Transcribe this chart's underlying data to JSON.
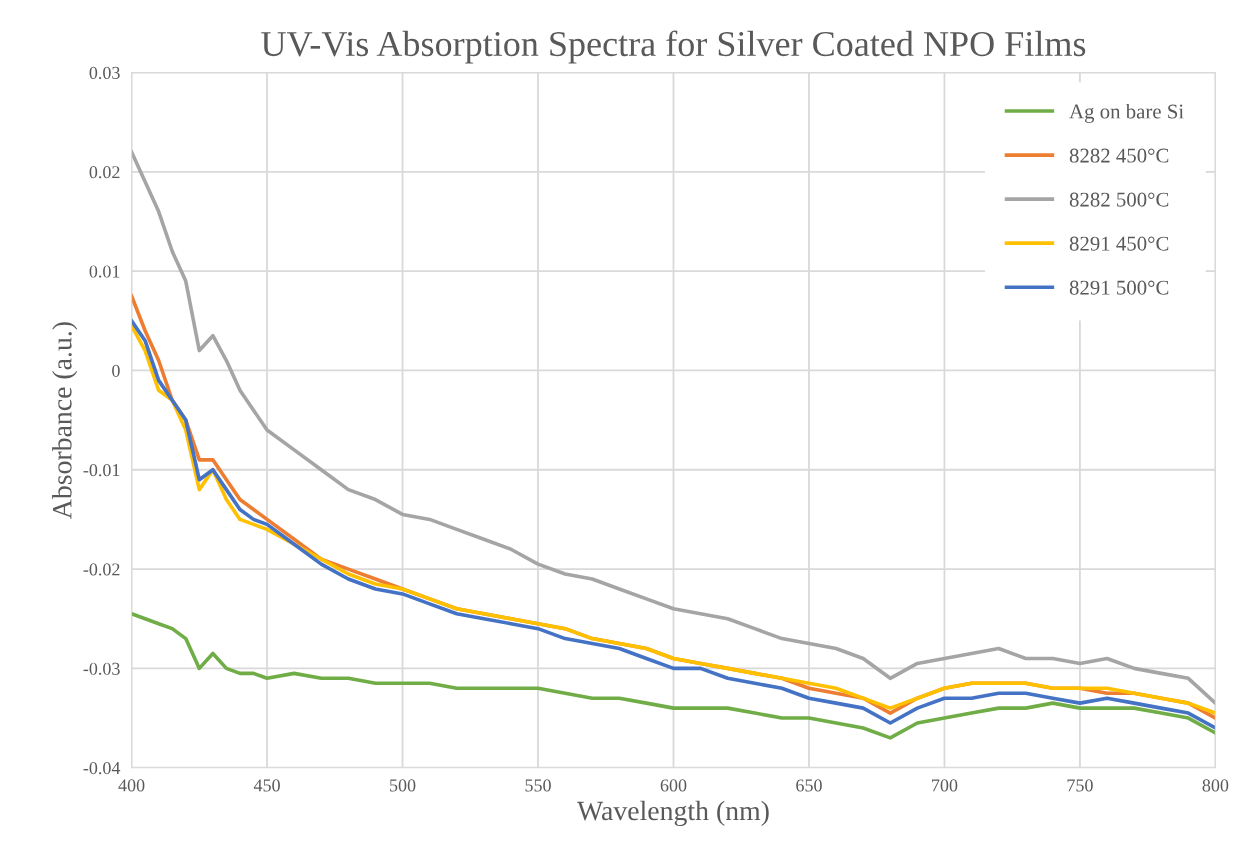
{
  "chart_data": {
    "type": "line",
    "title": "UV-Vis Absorption Spectra for Silver Coated NPO Films",
    "xlabel": "Wavelength (nm)",
    "ylabel": "Absorbance (a.u.)",
    "x": [
      400,
      405,
      410,
      415,
      420,
      425,
      430,
      435,
      440,
      445,
      450,
      460,
      470,
      480,
      490,
      500,
      510,
      520,
      530,
      540,
      550,
      560,
      570,
      580,
      590,
      600,
      610,
      620,
      630,
      640,
      650,
      660,
      670,
      680,
      690,
      700,
      710,
      720,
      730,
      740,
      750,
      760,
      770,
      780,
      790,
      800
    ],
    "series": [
      {
        "name": "Ag on bare Si",
        "color": "#70ad47",
        "values": [
          -0.0245,
          -0.025,
          -0.0255,
          -0.026,
          -0.027,
          -0.03,
          -0.0285,
          -0.03,
          -0.0305,
          -0.0305,
          -0.031,
          -0.0305,
          -0.031,
          -0.031,
          -0.0315,
          -0.0315,
          -0.0315,
          -0.032,
          -0.032,
          -0.032,
          -0.032,
          -0.0325,
          -0.033,
          -0.033,
          -0.0335,
          -0.034,
          -0.034,
          -0.034,
          -0.0345,
          -0.035,
          -0.035,
          -0.0355,
          -0.036,
          -0.037,
          -0.0355,
          -0.035,
          -0.0345,
          -0.034,
          -0.034,
          -0.0335,
          -0.034,
          -0.034,
          -0.034,
          -0.0345,
          -0.035,
          -0.0365
        ]
      },
      {
        "name": "8282 450°C",
        "color": "#ed7d31",
        "values": [
          0.0075,
          0.004,
          0.001,
          -0.003,
          -0.005,
          -0.009,
          -0.009,
          -0.011,
          -0.013,
          -0.014,
          -0.015,
          -0.017,
          -0.019,
          -0.02,
          -0.021,
          -0.022,
          -0.023,
          -0.024,
          -0.0245,
          -0.025,
          -0.0255,
          -0.026,
          -0.027,
          -0.0275,
          -0.028,
          -0.029,
          -0.0295,
          -0.03,
          -0.0305,
          -0.031,
          -0.032,
          -0.0325,
          -0.033,
          -0.0345,
          -0.033,
          -0.032,
          -0.0315,
          -0.0315,
          -0.0315,
          -0.032,
          -0.032,
          -0.0325,
          -0.0325,
          -0.033,
          -0.0335,
          -0.035
        ]
      },
      {
        "name": "8282 500°C",
        "color": "#a5a5a5",
        "values": [
          0.022,
          0.019,
          0.016,
          0.012,
          0.009,
          0.002,
          0.0035,
          0.001,
          -0.002,
          -0.004,
          -0.006,
          -0.008,
          -0.01,
          -0.012,
          -0.013,
          -0.0145,
          -0.015,
          -0.016,
          -0.017,
          -0.018,
          -0.0195,
          -0.0205,
          -0.021,
          -0.022,
          -0.023,
          -0.024,
          -0.0245,
          -0.025,
          -0.026,
          -0.027,
          -0.0275,
          -0.028,
          -0.029,
          -0.031,
          -0.0295,
          -0.029,
          -0.0285,
          -0.028,
          -0.029,
          -0.029,
          -0.0295,
          -0.029,
          -0.03,
          -0.0305,
          -0.031,
          -0.0335
        ]
      },
      {
        "name": "8291 450°C",
        "color": "#ffc000",
        "values": [
          0.0045,
          0.002,
          -0.002,
          -0.003,
          -0.006,
          -0.012,
          -0.01,
          -0.013,
          -0.015,
          -0.0155,
          -0.016,
          -0.0175,
          -0.019,
          -0.0205,
          -0.0215,
          -0.022,
          -0.023,
          -0.024,
          -0.0245,
          -0.025,
          -0.0255,
          -0.026,
          -0.027,
          -0.0275,
          -0.028,
          -0.029,
          -0.0295,
          -0.03,
          -0.0305,
          -0.031,
          -0.0315,
          -0.032,
          -0.033,
          -0.034,
          -0.033,
          -0.032,
          -0.0315,
          -0.0315,
          -0.0315,
          -0.032,
          -0.032,
          -0.032,
          -0.0325,
          -0.033,
          -0.0335,
          -0.0345
        ]
      },
      {
        "name": "8291 500°C",
        "color": "#4472c4",
        "values": [
          0.005,
          0.003,
          -0.001,
          -0.003,
          -0.005,
          -0.011,
          -0.01,
          -0.012,
          -0.014,
          -0.015,
          -0.0155,
          -0.0175,
          -0.0195,
          -0.021,
          -0.022,
          -0.0225,
          -0.0235,
          -0.0245,
          -0.025,
          -0.0255,
          -0.026,
          -0.027,
          -0.0275,
          -0.028,
          -0.029,
          -0.03,
          -0.03,
          -0.031,
          -0.0315,
          -0.032,
          -0.033,
          -0.0335,
          -0.034,
          -0.0355,
          -0.034,
          -0.033,
          -0.033,
          -0.0325,
          -0.0325,
          -0.033,
          -0.0335,
          -0.033,
          -0.0335,
          -0.034,
          -0.0345,
          -0.036
        ]
      }
    ],
    "xlim": [
      400,
      800
    ],
    "ylim": [
      -0.04,
      0.03
    ],
    "xticks": [
      400,
      450,
      500,
      550,
      600,
      650,
      700,
      750,
      800
    ],
    "yticks": [
      -0.04,
      -0.03,
      -0.02,
      -0.01,
      0,
      0.01,
      0.02,
      0.03
    ],
    "grid": true,
    "legend": "top right",
    "marker": "none",
    "line_style": "solid"
  }
}
